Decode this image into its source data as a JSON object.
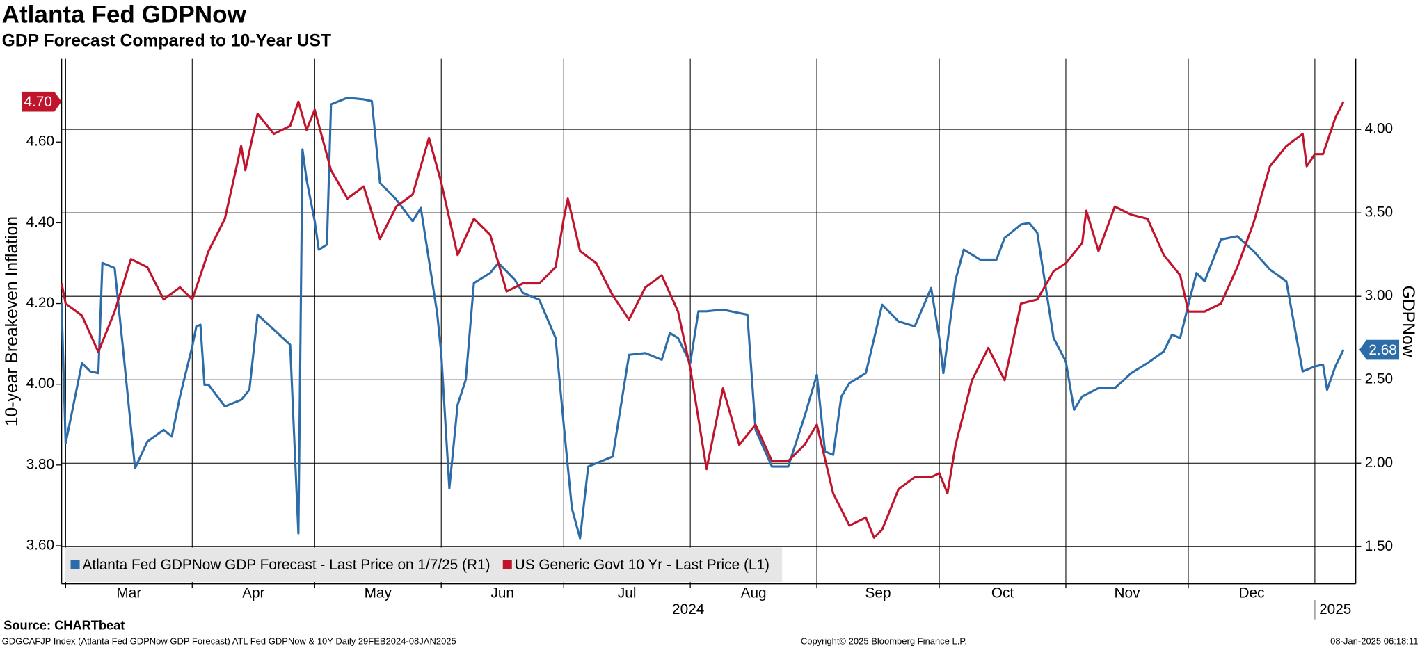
{
  "chart_data": {
    "type": "line",
    "title": "Atlanta Fed GDPNow",
    "subtitle": "GDP Forecast Compared to 10-Year UST",
    "ylabel": "10-year Breakeven Inflation",
    "y2label": "GDPNow",
    "source": "Source: CHARTbeat",
    "footer_left": "GDGCAFJP Index (Atlanta Fed GDPNow GDP Forecast) ATL Fed GDPNow & 10Y  Daily 29FEB2024-08JAN2025",
    "footer_center": "Copyright© 2025 Bloomberg Finance L.P.",
    "footer_right": "08-Jan-2025 06:18:11",
    "xlim": [
      "2024-02-29",
      "2025-01-11"
    ],
    "xticks": [
      {
        "value": "2024-03-01",
        "label": "Mar"
      },
      {
        "value": "2024-04-01",
        "label": "Apr"
      },
      {
        "value": "2024-05-01",
        "label": "May"
      },
      {
        "value": "2024-06-01",
        "label": "Jun"
      },
      {
        "value": "2024-07-01",
        "label": "Jul"
      },
      {
        "value": "2024-08-01",
        "label": "Aug"
      },
      {
        "value": "2024-09-01",
        "label": "Sep"
      },
      {
        "value": "2024-10-01",
        "label": "Oct"
      },
      {
        "value": "2024-11-01",
        "label": "Nov"
      },
      {
        "value": "2024-12-01",
        "label": "Dec"
      }
    ],
    "year_ticks": [
      {
        "value": "2024-01-01",
        "label": "2024"
      },
      {
        "value": "2025-01-01",
        "label": "2025"
      }
    ],
    "ylim": [
      3.506,
      4.806
    ],
    "yticks": [
      {
        "value": 3.6,
        "label": "3.60"
      },
      {
        "value": 3.8,
        "label": "3.80"
      },
      {
        "value": 4.0,
        "label": "4.00"
      },
      {
        "value": 4.2,
        "label": "4.20"
      },
      {
        "value": 4.4,
        "label": "4.40"
      },
      {
        "value": 4.6,
        "label": "4.60"
      }
    ],
    "y2lim": [
      1.278,
      4.423
    ],
    "y2ticks": [
      {
        "value": 1.5,
        "label": "1.50"
      },
      {
        "value": 2.0,
        "label": "2.00"
      },
      {
        "value": 2.5,
        "label": "2.50"
      },
      {
        "value": 3.0,
        "label": "3.00"
      },
      {
        "value": 3.5,
        "label": "3.50"
      },
      {
        "value": 4.0,
        "label": "4.00"
      }
    ],
    "grid": true,
    "legend": "lower left",
    "series": [
      {
        "name": "Atlanta Fed GDPNow GDP Forecast - Last Price on 1/7/25 (R1)",
        "color": "#2c6ca8",
        "axis": "y2",
        "last_price": {
          "value": 2.68,
          "label": "2.68"
        },
        "x": [
          "2024-02-29",
          "2024-03-01",
          "2024-03-05",
          "2024-03-07",
          "2024-03-09",
          "2024-03-10",
          "2024-03-13",
          "2024-03-15",
          "2024-03-18",
          "2024-03-21",
          "2024-03-25",
          "2024-03-27",
          "2024-03-29",
          "2024-04-01",
          "2024-04-02",
          "2024-04-03",
          "2024-04-04",
          "2024-04-05",
          "2024-04-09",
          "2024-04-13",
          "2024-04-15",
          "2024-04-17",
          "2024-04-21",
          "2024-04-25",
          "2024-04-27",
          "2024-04-28",
          "2024-04-29",
          "2024-05-01",
          "2024-05-02",
          "2024-05-04",
          "2024-05-05",
          "2024-05-09",
          "2024-05-13",
          "2024-05-15",
          "2024-05-17",
          "2024-05-21",
          "2024-05-25",
          "2024-05-27",
          "2024-05-31",
          "2024-06-01",
          "2024-06-03",
          "2024-06-05",
          "2024-06-07",
          "2024-06-09",
          "2024-06-13",
          "2024-06-15",
          "2024-06-19",
          "2024-06-21",
          "2024-06-25",
          "2024-06-29",
          "2024-07-01",
          "2024-07-03",
          "2024-07-05",
          "2024-07-07",
          "2024-07-11",
          "2024-07-13",
          "2024-07-17",
          "2024-07-21",
          "2024-07-25",
          "2024-07-27",
          "2024-07-29",
          "2024-08-01",
          "2024-08-03",
          "2024-08-05",
          "2024-08-09",
          "2024-08-13",
          "2024-08-15",
          "2024-08-17",
          "2024-08-21",
          "2024-08-25",
          "2024-08-29",
          "2024-09-01",
          "2024-09-03",
          "2024-09-05",
          "2024-09-07",
          "2024-09-09",
          "2024-09-13",
          "2024-09-17",
          "2024-09-21",
          "2024-09-25",
          "2024-09-29",
          "2024-10-01",
          "2024-10-02",
          "2024-10-05",
          "2024-10-07",
          "2024-10-11",
          "2024-10-15",
          "2024-10-17",
          "2024-10-21",
          "2024-10-23",
          "2024-10-25",
          "2024-10-29",
          "2024-11-01",
          "2024-11-03",
          "2024-11-05",
          "2024-11-09",
          "2024-11-13",
          "2024-11-17",
          "2024-11-21",
          "2024-11-25",
          "2024-11-27",
          "2024-11-29",
          "2024-12-01",
          "2024-12-03",
          "2024-12-05",
          "2024-12-09",
          "2024-12-13",
          "2024-12-17",
          "2024-12-21",
          "2024-12-25",
          "2024-12-29",
          "2025-01-01",
          "2025-01-03",
          "2025-01-04",
          "2025-01-06",
          "2025-01-08"
        ],
        "values": [
          2.96,
          2.12,
          2.6,
          2.55,
          2.54,
          3.2,
          3.17,
          2.7,
          1.97,
          2.13,
          2.2,
          2.16,
          2.4,
          2.7,
          2.82,
          2.83,
          2.47,
          2.47,
          2.34,
          2.38,
          2.44,
          2.89,
          2.8,
          2.71,
          1.58,
          3.88,
          3.7,
          3.45,
          3.28,
          3.31,
          4.15,
          4.19,
          4.18,
          4.17,
          3.68,
          3.58,
          3.45,
          3.53,
          2.9,
          2.66,
          1.85,
          2.35,
          2.5,
          3.08,
          3.14,
          3.2,
          3.1,
          3.02,
          2.98,
          2.75,
          2.23,
          1.73,
          1.55,
          1.98,
          2.02,
          2.04,
          2.65,
          2.66,
          2.62,
          2.78,
          2.75,
          2.6,
          2.91,
          2.91,
          2.92,
          2.9,
          2.89,
          2.2,
          1.98,
          1.98,
          2.28,
          2.53,
          2.07,
          2.05,
          2.4,
          2.48,
          2.54,
          2.95,
          2.85,
          2.82,
          3.05,
          2.75,
          2.54,
          3.1,
          3.28,
          3.22,
          3.22,
          3.35,
          3.43,
          3.44,
          3.38,
          2.75,
          2.61,
          2.32,
          2.4,
          2.45,
          2.45,
          2.54,
          2.6,
          2.67,
          2.77,
          2.75,
          2.95,
          3.14,
          3.09,
          3.34,
          3.36,
          3.27,
          3.16,
          3.09,
          2.55,
          2.58,
          2.59,
          2.44,
          2.58,
          2.68
        ]
      },
      {
        "name": "US Generic Govt 10 Yr - Last Price (L1)",
        "color": "#c0142c",
        "axis": "y",
        "last_price": {
          "value": 4.7,
          "label": "4.70"
        },
        "x": [
          "2024-02-29",
          "2024-03-01",
          "2024-03-05",
          "2024-03-09",
          "2024-03-13",
          "2024-03-17",
          "2024-03-21",
          "2024-03-25",
          "2024-03-29",
          "2024-04-01",
          "2024-04-05",
          "2024-04-09",
          "2024-04-13",
          "2024-04-14",
          "2024-04-17",
          "2024-04-21",
          "2024-04-25",
          "2024-04-27",
          "2024-04-29",
          "2024-05-01",
          "2024-05-05",
          "2024-05-09",
          "2024-05-13",
          "2024-05-17",
          "2024-05-21",
          "2024-05-25",
          "2024-05-29",
          "2024-06-01",
          "2024-06-05",
          "2024-06-09",
          "2024-06-13",
          "2024-06-17",
          "2024-06-21",
          "2024-06-25",
          "2024-06-29",
          "2024-07-01",
          "2024-07-02",
          "2024-07-05",
          "2024-07-09",
          "2024-07-13",
          "2024-07-17",
          "2024-07-21",
          "2024-07-25",
          "2024-07-29",
          "2024-08-01",
          "2024-08-05",
          "2024-08-09",
          "2024-08-13",
          "2024-08-17",
          "2024-08-21",
          "2024-08-25",
          "2024-08-29",
          "2024-09-01",
          "2024-09-05",
          "2024-09-09",
          "2024-09-13",
          "2024-09-15",
          "2024-09-17",
          "2024-09-21",
          "2024-09-25",
          "2024-09-29",
          "2024-10-01",
          "2024-10-03",
          "2024-10-05",
          "2024-10-09",
          "2024-10-13",
          "2024-10-17",
          "2024-10-21",
          "2024-10-25",
          "2024-10-29",
          "2024-11-01",
          "2024-11-05",
          "2024-11-06",
          "2024-11-09",
          "2024-11-13",
          "2024-11-17",
          "2024-11-21",
          "2024-11-25",
          "2024-11-29",
          "2024-12-01",
          "2024-12-05",
          "2024-12-09",
          "2024-12-13",
          "2024-12-17",
          "2024-12-21",
          "2024-12-25",
          "2024-12-29",
          "2024-12-30",
          "2025-01-01",
          "2025-01-03",
          "2025-01-06",
          "2025-01-08"
        ],
        "values": [
          4.25,
          4.2,
          4.17,
          4.08,
          4.18,
          4.31,
          4.29,
          4.21,
          4.24,
          4.21,
          4.33,
          4.41,
          4.59,
          4.53,
          4.67,
          4.62,
          4.64,
          4.7,
          4.63,
          4.68,
          4.53,
          4.46,
          4.49,
          4.36,
          4.44,
          4.47,
          4.61,
          4.5,
          4.32,
          4.41,
          4.37,
          4.23,
          4.25,
          4.25,
          4.29,
          4.41,
          4.46,
          4.33,
          4.3,
          4.22,
          4.16,
          4.24,
          4.27,
          4.18,
          4.04,
          3.79,
          3.99,
          3.85,
          3.9,
          3.81,
          3.81,
          3.85,
          3.9,
          3.73,
          3.65,
          3.67,
          3.62,
          3.64,
          3.74,
          3.77,
          3.77,
          3.78,
          3.73,
          3.85,
          4.01,
          4.09,
          4.01,
          4.2,
          4.21,
          4.28,
          4.3,
          4.35,
          4.43,
          4.33,
          4.44,
          4.42,
          4.41,
          4.32,
          4.27,
          4.18,
          4.18,
          4.2,
          4.29,
          4.4,
          4.54,
          4.59,
          4.62,
          4.54,
          4.57,
          4.57,
          4.66,
          4.7
        ]
      }
    ]
  }
}
